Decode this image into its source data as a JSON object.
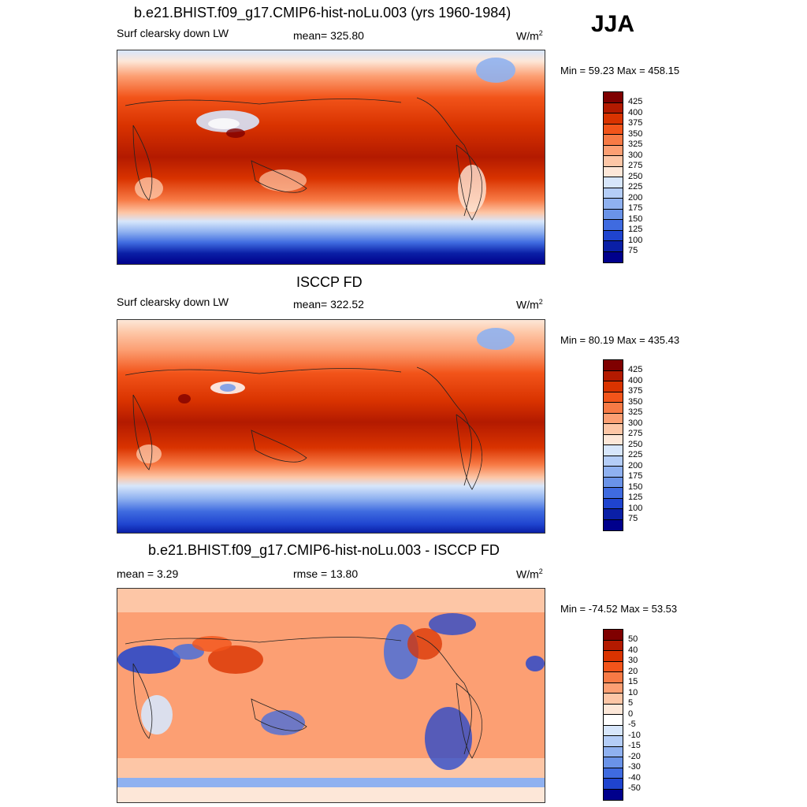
{
  "season": "JJA",
  "panels": [
    {
      "title": "b.e21.BHIST.f09_g17.CMIP6-hist-noLu.003 (yrs 1960-1984)",
      "left_label": "Surf clearsky down LW",
      "center_label": "mean= 325.80",
      "units": "W/m",
      "units_sup": "2",
      "minmax": "Min =  59.23 Max = 458.15",
      "colorbar": {
        "labels": [
          "425",
          "400",
          "375",
          "350",
          "325",
          "300",
          "275",
          "250",
          "225",
          "200",
          "175",
          "150",
          "125",
          "100",
          "75"
        ],
        "colors": [
          "#7f0000",
          "#b31a00",
          "#d93300",
          "#f2541a",
          "#f77a45",
          "#fc9f73",
          "#fdc6a6",
          "#fde7d8",
          "#d7e6fb",
          "#b4cdf7",
          "#8fb1f0",
          "#6a93e8",
          "#3f6be0",
          "#1f44cf",
          "#0a1fa6",
          "#00008c"
        ]
      }
    },
    {
      "title": "ISCCP FD",
      "left_label": "Surf clearsky down LW",
      "center_label": "mean= 322.52",
      "units": "W/m",
      "units_sup": "2",
      "minmax": "Min =  80.19 Max = 435.43",
      "colorbar": {
        "labels": [
          "425",
          "400",
          "375",
          "350",
          "325",
          "300",
          "275",
          "250",
          "225",
          "200",
          "175",
          "150",
          "125",
          "100",
          "75"
        ],
        "colors": [
          "#7f0000",
          "#b31a00",
          "#d93300",
          "#f2541a",
          "#f77a45",
          "#fc9f73",
          "#fdc6a6",
          "#fde7d8",
          "#d7e6fb",
          "#b4cdf7",
          "#8fb1f0",
          "#6a93e8",
          "#3f6be0",
          "#1f44cf",
          "#0a1fa6",
          "#00008c"
        ]
      }
    },
    {
      "title": "b.e21.BHIST.f09_g17.CMIP6-hist-noLu.003 - ISCCP FD",
      "left_label": "mean =   3.29",
      "center_label": "rmse =  13.80",
      "units": "W/m",
      "units_sup": "2",
      "minmax": "Min = -74.52 Max =  53.53",
      "colorbar": {
        "labels": [
          "50",
          "40",
          "30",
          "20",
          "15",
          "10",
          "5",
          "0",
          "-5",
          "-10",
          "-15",
          "-20",
          "-30",
          "-40",
          "-50"
        ],
        "colors": [
          "#7f0000",
          "#b31a00",
          "#d93300",
          "#f2541a",
          "#f77a45",
          "#fc9f73",
          "#fdc6a6",
          "#fde7d8",
          "#ffffff",
          "#d7e6fb",
          "#b4cdf7",
          "#8fb1f0",
          "#6a93e8",
          "#3f6be0",
          "#1f44cf",
          "#00008c"
        ]
      }
    }
  ]
}
